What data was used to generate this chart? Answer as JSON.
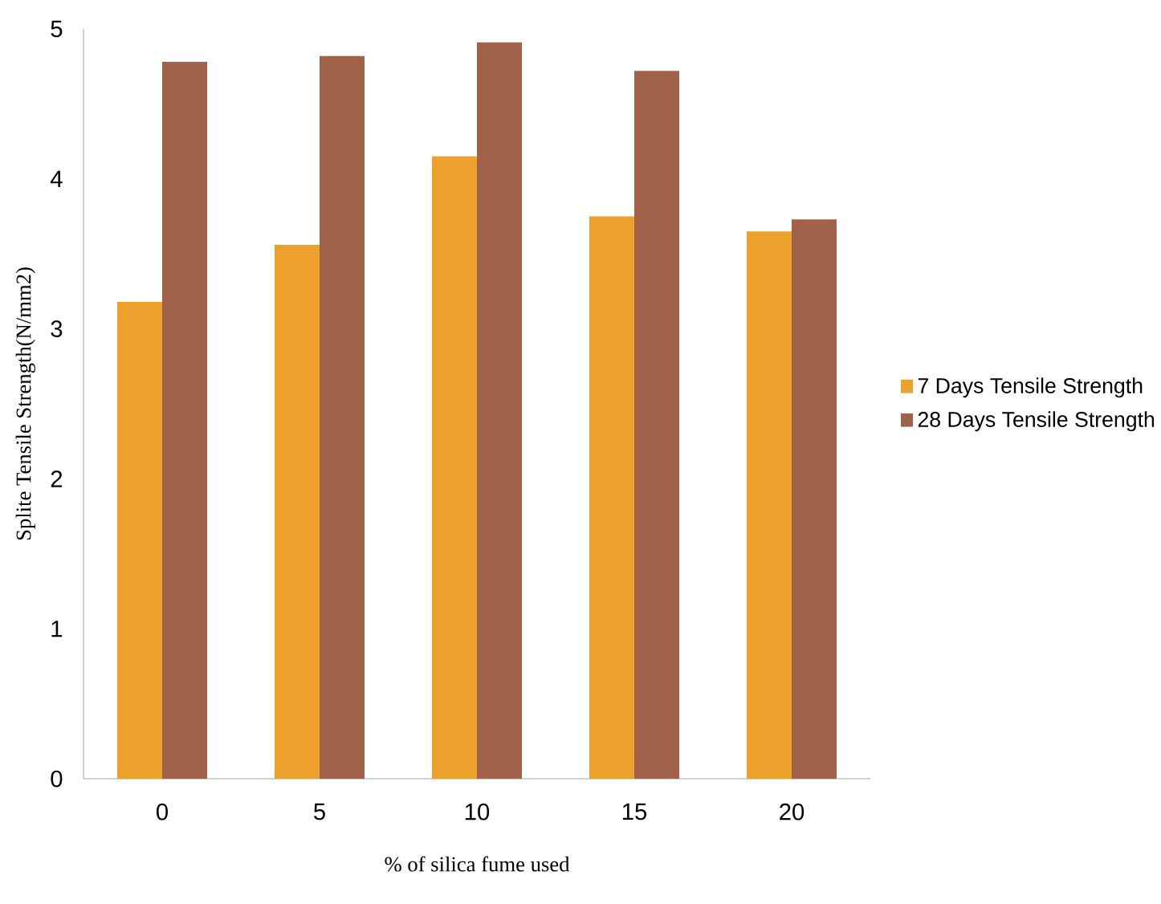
{
  "chart_data": {
    "type": "bar",
    "xlabel": "% of silica fume used",
    "ylabel": "Splite Tensile Strength(N/mm2)",
    "categories": [
      "0",
      "5",
      "10",
      "15",
      "20"
    ],
    "series": [
      {
        "name": "7 Days Tensile Strength",
        "color": "#eba12c",
        "values": [
          3.18,
          3.56,
          4.15,
          3.75,
          3.65
        ]
      },
      {
        "name": "28 Days Tensile Strength",
        "color": "#a0634a",
        "values": [
          4.78,
          4.82,
          4.91,
          4.72,
          3.73
        ]
      }
    ],
    "ylim": [
      0,
      5
    ],
    "yticks": [
      0,
      1,
      2,
      3,
      4,
      5
    ],
    "legend": "right"
  }
}
